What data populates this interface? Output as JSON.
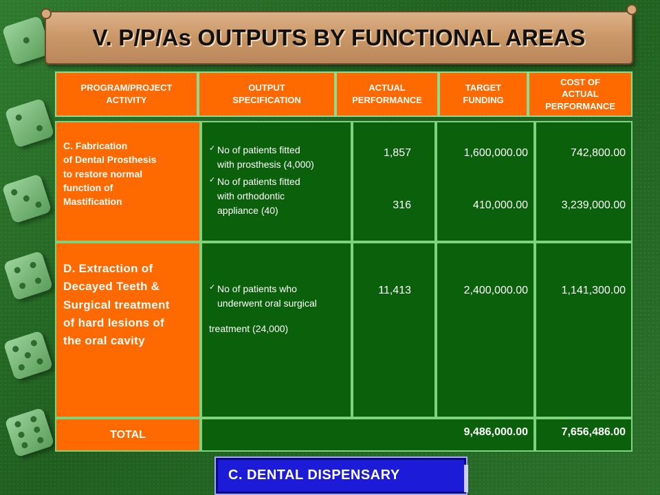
{
  "title": "V. P/P/As OUTPUTS BY FUNCTIONAL AREAS",
  "colors": {
    "header_bg": "#ff6a00",
    "body_bg": "#0b610b",
    "grid": "#7fd37f",
    "footer_bg": "#1b1bd8"
  },
  "table": {
    "headers": [
      [
        "PROGRAM/PROJECT",
        "ACTIVITY"
      ],
      [
        "OUTPUT",
        "SPECIFICATION"
      ],
      [
        "ACTUAL",
        "PERFORMANCE"
      ],
      [
        "TARGET",
        "FUNDING"
      ],
      [
        "COST OF",
        "ACTUAL",
        "PERFORMANCE"
      ]
    ],
    "rows": [
      {
        "activity": [
          "C.  Fabrication",
          "of Dental Prosthesis",
          "to restore  normal",
          "function of",
          "Mastification"
        ],
        "specs": [
          [
            "No of patients fitted",
            "with prosthesis (4,000)"
          ],
          [
            "No of patients fitted",
            "with orthodontic",
            "appliance (40)"
          ]
        ],
        "actual": [
          "1,857",
          "316"
        ],
        "target": [
          "1,600,000.00",
          "410,000.00"
        ],
        "cost": [
          "742,800.00",
          "3,239,000.00"
        ]
      },
      {
        "activity": [
          "D.      Extraction of",
          "Decayed Teeth &",
          "Surgical treatment",
          "of hard lesions of",
          "the oral cavity"
        ],
        "specs": [
          [
            "No of patients who",
            "underwent oral surgical"
          ]
        ],
        "spec_extra": "treatment (24,000)",
        "actual": [
          "11,413"
        ],
        "target": [
          "2,400,000.00"
        ],
        "cost": [
          "1,141,300.00"
        ]
      }
    ],
    "total": {
      "label": "TOTAL",
      "target": "9,486,000.00",
      "cost": "7,656,486.00"
    }
  },
  "footer": {
    "label": "C.  DENTAL DISPENSARY"
  }
}
